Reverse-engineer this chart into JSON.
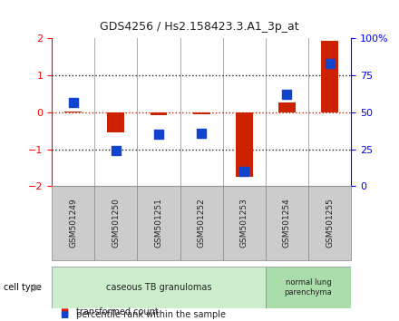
{
  "title": "GDS4256 / Hs2.158423.3.A1_3p_at",
  "samples": [
    "GSM501249",
    "GSM501250",
    "GSM501251",
    "GSM501252",
    "GSM501253",
    "GSM501254",
    "GSM501255"
  ],
  "transformed_count": [
    0.02,
    -0.55,
    -0.07,
    -0.05,
    -1.75,
    0.28,
    1.95
  ],
  "percentile_rank": [
    57,
    24,
    35,
    36,
    10,
    62,
    83
  ],
  "ylim_left": [
    -2,
    2
  ],
  "ylim_right": [
    0,
    100
  ],
  "yticks_left": [
    -2,
    -1,
    0,
    1,
    2
  ],
  "yticks_right": [
    0,
    25,
    50,
    75,
    100
  ],
  "ytick_labels_right": [
    "0",
    "25",
    "50",
    "75",
    "100%"
  ],
  "bar_color": "#cc2200",
  "dot_color": "#1144cc",
  "dotted_line_color_red": "#cc2200",
  "dotted_line_color_black": "#222222",
  "group1_label": "caseous TB granulomas",
  "group2_label": "normal lung\nparenchyma",
  "group1_indices": [
    0,
    1,
    2,
    3,
    4
  ],
  "group2_indices": [
    5,
    6
  ],
  "group1_color": "#cceecc",
  "group2_color": "#aaddaa",
  "cell_type_label": "cell type",
  "legend1_label": "transformed count",
  "legend2_label": "percentile rank within the sample",
  "bg_color": "#ffffff",
  "plot_bg_color": "#ffffff",
  "label_area_color": "#cccccc"
}
